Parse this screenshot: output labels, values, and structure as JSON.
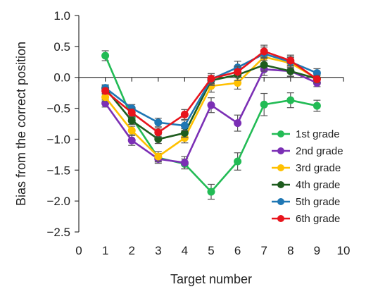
{
  "chart_data": {
    "type": "line",
    "xlabel": "Target number",
    "ylabel": "Bias from the correct position",
    "xlim": [
      0,
      10
    ],
    "ylim": [
      -2.5,
      1.0
    ],
    "x_ticks": [
      0,
      1,
      2,
      3,
      4,
      5,
      6,
      7,
      8,
      9,
      10
    ],
    "y_ticks": [
      1.0,
      0.5,
      0.0,
      -0.5,
      -1.0,
      -1.5,
      -2.0,
      -2.5
    ],
    "y_tick_labels": [
      "1.0",
      "0.5",
      "0.0",
      "−0.5",
      "−1.0",
      "−1.5",
      "−2.0",
      "−2.5"
    ],
    "grid": false,
    "legend_position": "lower-right",
    "x": [
      1,
      2,
      3,
      4,
      5,
      6,
      7,
      8,
      9
    ],
    "series": [
      {
        "name": "1st grade",
        "color": "#22bb55",
        "values": [
          0.35,
          -0.65,
          -1.3,
          -1.4,
          -1.85,
          -1.36,
          -0.44,
          -0.37,
          -0.46
        ],
        "errors": [
          0.08,
          0.06,
          0.07,
          0.08,
          0.12,
          0.14,
          0.18,
          0.12,
          0.09
        ]
      },
      {
        "name": "2nd grade",
        "color": "#7b2fb5",
        "values": [
          -0.42,
          -1.02,
          -1.32,
          -1.38,
          -0.45,
          -0.74,
          0.13,
          0.1,
          -0.09
        ],
        "errors": [
          0.06,
          0.08,
          0.07,
          0.1,
          0.12,
          0.13,
          0.1,
          0.08,
          0.06
        ]
      },
      {
        "name": "3rd grade",
        "color": "#ffc000",
        "values": [
          -0.32,
          -0.86,
          -1.28,
          -0.98,
          -0.14,
          -0.09,
          0.33,
          0.23,
          -0.02
        ],
        "errors": [
          0.06,
          0.07,
          0.08,
          0.08,
          0.1,
          0.1,
          0.1,
          0.09,
          0.07
        ]
      },
      {
        "name": "4th grade",
        "color": "#1e5c1e",
        "values": [
          -0.18,
          -0.7,
          -1.0,
          -0.9,
          -0.05,
          0.04,
          0.2,
          0.1,
          -0.02
        ],
        "errors": [
          0.05,
          0.06,
          0.07,
          0.07,
          0.08,
          0.09,
          0.1,
          0.09,
          0.06
        ]
      },
      {
        "name": "5th grade",
        "color": "#1f77b4",
        "values": [
          -0.17,
          -0.5,
          -0.73,
          -0.78,
          -0.03,
          0.16,
          0.38,
          0.25,
          0.07
        ],
        "errors": [
          0.05,
          0.06,
          0.07,
          0.08,
          0.09,
          0.1,
          0.11,
          0.09,
          0.07
        ]
      },
      {
        "name": "6th grade",
        "color": "#e8141c",
        "values": [
          -0.22,
          -0.57,
          -0.89,
          -0.6,
          -0.02,
          0.09,
          0.42,
          0.27,
          -0.03
        ],
        "errors": [
          0.05,
          0.06,
          0.07,
          0.08,
          0.08,
          0.09,
          0.1,
          0.09,
          0.06
        ]
      }
    ]
  }
}
